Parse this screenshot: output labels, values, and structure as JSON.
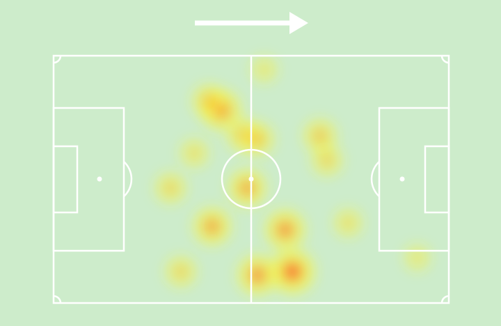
{
  "chart_data": {
    "type": "heatmap",
    "xlim": [
      0,
      100
    ],
    "ylim": [
      0,
      100
    ],
    "points": [
      {
        "x": 42.4,
        "y": 22,
        "weight": 0.8
      },
      {
        "x": 39.3,
        "y": 18.3,
        "weight": 0.5
      },
      {
        "x": 48,
        "y": 32,
        "weight": 0.5
      },
      {
        "x": 51.6,
        "y": 33.8,
        "weight": 0.5
      },
      {
        "x": 49,
        "y": 53.5,
        "weight": 0.7
      },
      {
        "x": 40.1,
        "y": 69,
        "weight": 0.7
      },
      {
        "x": 58.6,
        "y": 70.4,
        "weight": 0.8
      },
      {
        "x": 60.4,
        "y": 87.3,
        "weight": 1
      },
      {
        "x": 51.6,
        "y": 88.7,
        "weight": 0.8
      },
      {
        "x": 67.4,
        "y": 32.4,
        "weight": 0.5
      },
      {
        "x": 69.2,
        "y": 42.3,
        "weight": 0.4
      },
      {
        "x": 29.6,
        "y": 53.5,
        "weight": 0.4
      },
      {
        "x": 32.2,
        "y": 87.3,
        "weight": 0.4
      },
      {
        "x": 74.5,
        "y": 67.6,
        "weight": 0.3
      },
      {
        "x": 92,
        "y": 81.7,
        "weight": 0.2
      },
      {
        "x": 53.3,
        "y": 5.6,
        "weight": 0.2
      },
      {
        "x": 35.6,
        "y": 39.4,
        "weight": 0.3
      }
    ]
  }
}
